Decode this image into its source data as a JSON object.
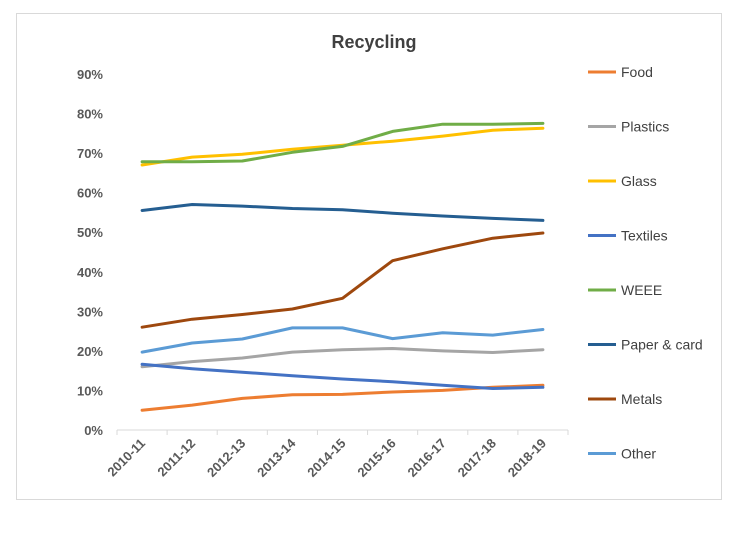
{
  "chart_data": {
    "type": "line",
    "title": "Recycling",
    "xlabel": "",
    "ylabel": "",
    "categories": [
      "2010-11",
      "2011-12",
      "2012-13",
      "2013-14",
      "2014-15",
      "2015-16",
      "2016-17",
      "2017-18",
      "2018-19"
    ],
    "ylim": [
      0,
      90
    ],
    "yticks": [
      "0%",
      "10%",
      "20%",
      "30%",
      "40%",
      "50%",
      "60%",
      "70%",
      "80%",
      "90%"
    ],
    "grid": false,
    "legend_position": "right",
    "series": [
      {
        "name": "Food",
        "color": "#ed7d31",
        "values": [
          5.0,
          6.3,
          8.0,
          8.9,
          9.0,
          9.6,
          10.0,
          10.8,
          11.3
        ]
      },
      {
        "name": "Plastics",
        "color": "#a5a5a5",
        "values": [
          16.0,
          17.3,
          18.2,
          19.7,
          20.3,
          20.6,
          20.0,
          19.6,
          20.3
        ]
      },
      {
        "name": "Glass",
        "color": "#ffc000",
        "values": [
          67.0,
          69.0,
          69.7,
          71.0,
          72.0,
          73.0,
          74.3,
          75.8,
          76.3
        ]
      },
      {
        "name": "Textiles",
        "color": "#4472c4",
        "values": [
          16.6,
          15.5,
          14.6,
          13.7,
          12.9,
          12.2,
          11.3,
          10.5,
          10.8
        ]
      },
      {
        "name": "WEEE",
        "color": "#70ad47",
        "values": [
          67.8,
          67.8,
          68.0,
          70.2,
          71.7,
          75.5,
          77.3,
          77.3,
          77.5
        ]
      },
      {
        "name": "Paper & card",
        "color": "#255e91",
        "values": [
          55.5,
          57.0,
          56.6,
          56.0,
          55.7,
          54.8,
          54.1,
          53.5,
          53.0
        ]
      },
      {
        "name": "Metals",
        "color": "#9e480e",
        "values": [
          26.0,
          28.0,
          29.2,
          30.6,
          33.3,
          42.8,
          45.8,
          48.5,
          49.8
        ]
      },
      {
        "name": "Other",
        "color": "#5b9bd5",
        "values": [
          19.7,
          22.0,
          23.0,
          25.8,
          25.8,
          23.1,
          24.6,
          24.0,
          25.4
        ]
      }
    ]
  }
}
